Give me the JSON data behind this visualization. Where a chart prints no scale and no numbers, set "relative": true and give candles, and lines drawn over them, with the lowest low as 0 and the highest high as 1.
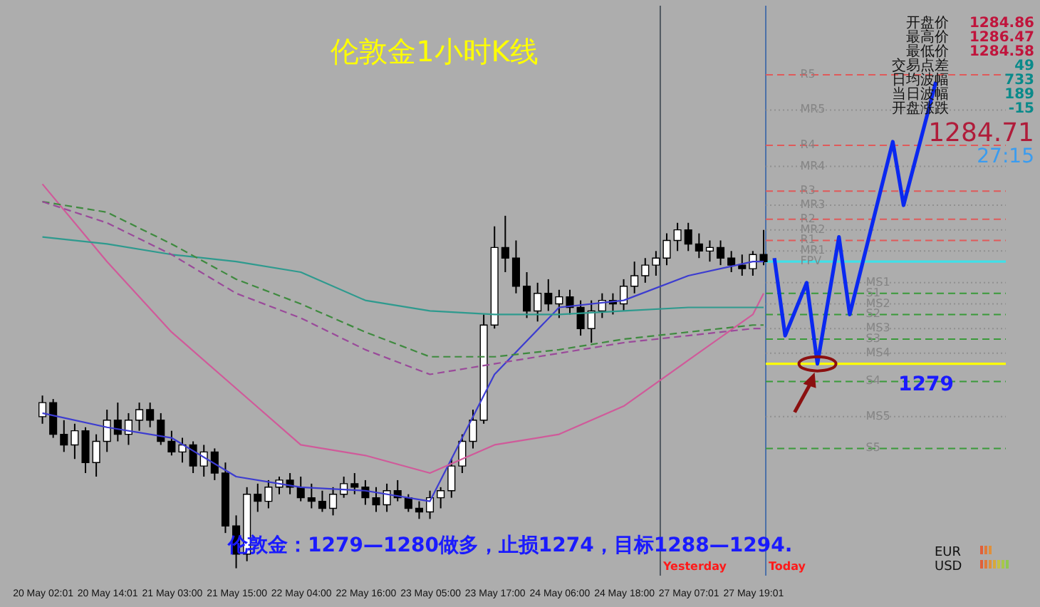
{
  "chart_data": {
    "type": "candlestick",
    "title": "伦敦金1小时K线",
    "categories": [
      "20 May 02:01",
      null,
      null,
      null,
      null,
      null,
      "20 May 14:01",
      null,
      null,
      null,
      null,
      null,
      "21 May 03:00",
      null,
      null,
      null,
      null,
      null,
      "21 May 15:00",
      null,
      null,
      null,
      null,
      null,
      "22 May 04:00",
      null,
      null,
      null,
      null,
      null,
      "22 May 16:00",
      null,
      null,
      null,
      null,
      null,
      "23 May 05:00",
      null,
      null,
      null,
      null,
      null,
      "23 May 17:00",
      null,
      null,
      null,
      null,
      null,
      "24 May 06:00",
      null,
      null,
      null,
      null,
      null,
      "24 May 18:00",
      null,
      null,
      null,
      null,
      null,
      "27 May 07:01",
      null,
      null,
      null,
      null,
      null,
      "27 May 19:01",
      null,
      null,
      null,
      null,
      null,
      null,
      null,
      null,
      null,
      null,
      null,
      null,
      null,
      null,
      null,
      null,
      null,
      null,
      null,
      null,
      null,
      null,
      null
    ],
    "relative": true,
    "ohlc": [
      [
        0.43,
        0.49,
        0.41,
        0.47
      ],
      [
        0.47,
        0.48,
        0.37,
        0.38
      ],
      [
        0.38,
        0.42,
        0.33,
        0.35
      ],
      [
        0.35,
        0.41,
        0.31,
        0.39
      ],
      [
        0.39,
        0.4,
        0.27,
        0.3
      ],
      [
        0.3,
        0.38,
        0.26,
        0.36
      ],
      [
        0.36,
        0.45,
        0.33,
        0.42
      ],
      [
        0.42,
        0.47,
        0.36,
        0.38
      ],
      [
        0.38,
        0.44,
        0.35,
        0.42
      ],
      [
        0.42,
        0.47,
        0.39,
        0.45
      ],
      [
        0.45,
        0.47,
        0.4,
        0.42
      ],
      [
        0.42,
        0.44,
        0.35,
        0.36
      ],
      [
        0.36,
        0.39,
        0.32,
        0.33
      ],
      [
        0.33,
        0.37,
        0.3,
        0.35
      ],
      [
        0.35,
        0.36,
        0.27,
        0.29
      ],
      [
        0.29,
        0.35,
        0.26,
        0.33
      ],
      [
        0.33,
        0.34,
        0.25,
        0.27
      ],
      [
        0.27,
        0.3,
        0.1,
        0.12
      ],
      [
        0.12,
        0.15,
        0,
        0.04
      ],
      [
        0.04,
        0.23,
        0.02,
        0.21
      ],
      [
        0.21,
        0.24,
        0.16,
        0.19
      ],
      [
        0.19,
        0.25,
        0.17,
        0.23
      ],
      [
        0.23,
        0.26,
        0.21,
        0.25
      ],
      [
        0.25,
        0.27,
        0.21,
        0.23
      ],
      [
        0.23,
        0.26,
        0.19,
        0.2
      ],
      [
        0.2,
        0.24,
        0.17,
        0.19
      ],
      [
        0.19,
        0.22,
        0.16,
        0.17
      ],
      [
        0.17,
        0.23,
        0.15,
        0.21
      ],
      [
        0.21,
        0.26,
        0.2,
        0.24
      ],
      [
        0.24,
        0.27,
        0.21,
        0.23
      ],
      [
        0.23,
        0.25,
        0.18,
        0.2
      ],
      [
        0.2,
        0.23,
        0.16,
        0.18
      ],
      [
        0.18,
        0.24,
        0.16,
        0.22
      ],
      [
        0.22,
        0.25,
        0.19,
        0.2
      ],
      [
        0.2,
        0.21,
        0.16,
        0.17
      ],
      [
        0.17,
        0.19,
        0.14,
        0.16
      ],
      [
        0.16,
        0.22,
        0.14,
        0.2
      ],
      [
        0.2,
        0.23,
        0.17,
        0.22
      ],
      [
        0.22,
        0.31,
        0.2,
        0.29
      ],
      [
        0.29,
        0.38,
        0.27,
        0.36
      ],
      [
        0.36,
        0.45,
        0.34,
        0.42
      ],
      [
        0.42,
        0.72,
        0.41,
        0.69
      ],
      [
        0.69,
        0.97,
        0.68,
        0.91
      ],
      [
        0.91,
        1,
        0.84,
        0.88
      ],
      [
        0.88,
        0.93,
        0.78,
        0.8
      ],
      [
        0.8,
        0.84,
        0.71,
        0.73
      ],
      [
        0.73,
        0.81,
        0.7,
        0.78
      ],
      [
        0.78,
        0.82,
        0.73,
        0.75
      ],
      [
        0.75,
        0.79,
        0.71,
        0.77
      ],
      [
        0.77,
        0.79,
        0.72,
        0.74
      ],
      [
        0.74,
        0.76,
        0.66,
        0.68
      ],
      [
        0.68,
        0.76,
        0.64,
        0.73
      ],
      [
        0.73,
        0.78,
        0.71,
        0.76
      ],
      [
        0.76,
        0.78,
        0.72,
        0.75
      ],
      [
        0.75,
        0.82,
        0.73,
        0.8
      ],
      [
        0.8,
        0.87,
        0.78,
        0.83
      ],
      [
        0.83,
        0.88,
        0.81,
        0.86
      ],
      [
        0.86,
        0.9,
        0.83,
        0.88
      ],
      [
        0.88,
        0.95,
        0.86,
        0.93
      ],
      [
        0.93,
        0.98,
        0.9,
        0.96
      ],
      [
        0.96,
        0.98,
        0.9,
        0.92
      ],
      [
        0.92,
        0.95,
        0.88,
        0.9
      ],
      [
        0.9,
        0.93,
        0.87,
        0.91
      ],
      [
        0.91,
        0.93,
        0.86,
        0.88
      ],
      [
        0.88,
        0.9,
        0.84,
        0.86
      ],
      [
        0.86,
        0.89,
        0.83,
        0.85
      ],
      [
        0.85,
        0.9,
        0.83,
        0.89
      ],
      [
        0.89,
        0.96,
        0.86,
        0.87
      ],
      null,
      null,
      null,
      null,
      null,
      null,
      null,
      null,
      null,
      null,
      null,
      null,
      null,
      null,
      null,
      null,
      null,
      null,
      null,
      null,
      null,
      null
    ],
    "tick_labels": "x",
    "series": [
      {
        "type": "line",
        "color": "#3c3cd0",
        "values": [
          0.44,
          null,
          null,
          null,
          null,
          null,
          0.4,
          null,
          null,
          null,
          null,
          null,
          0.37,
          null,
          null,
          null,
          null,
          null,
          0.26,
          null,
          null,
          null,
          null,
          null,
          0.23,
          null,
          null,
          null,
          null,
          null,
          0.22,
          null,
          null,
          null,
          null,
          null,
          0.19,
          null,
          null,
          null,
          null,
          null,
          0.55,
          null,
          null,
          null,
          null,
          null,
          0.74,
          null,
          null,
          null,
          null,
          null,
          0.76,
          null,
          null,
          null,
          null,
          null,
          0.83,
          null,
          null,
          null,
          null,
          null,
          0.87,
          0.87,
          null,
          null,
          null,
          null,
          null,
          null,
          null,
          null,
          null,
          null,
          null,
          null,
          null,
          null,
          null,
          null,
          null,
          null,
          null,
          null,
          null,
          null
        ]
      },
      {
        "type": "line",
        "color": "#d05a9a",
        "values": [
          1.09,
          null,
          null,
          null,
          null,
          null,
          0.87,
          null,
          null,
          null,
          null,
          null,
          0.67,
          null,
          null,
          null,
          null,
          null,
          0.51,
          null,
          null,
          null,
          null,
          null,
          0.35,
          null,
          null,
          null,
          null,
          null,
          0.32,
          null,
          null,
          null,
          null,
          null,
          0.27,
          null,
          null,
          null,
          null,
          null,
          0.35,
          null,
          null,
          null,
          null,
          null,
          0.38,
          null,
          null,
          null,
          null,
          null,
          0.46,
          null,
          null,
          null,
          null,
          null,
          0.59,
          null,
          null,
          null,
          null,
          null,
          0.72,
          0.78,
          null,
          null,
          null,
          null,
          null,
          null,
          null,
          null,
          null,
          null,
          null,
          null,
          null,
          null,
          null,
          null,
          null,
          null,
          null,
          null,
          null,
          null
        ]
      },
      {
        "type": "line",
        "color": "#2e9a8e",
        "values": [
          0.94,
          null,
          null,
          null,
          null,
          null,
          0.92,
          null,
          null,
          null,
          null,
          null,
          0.89,
          null,
          null,
          null,
          null,
          null,
          0.87,
          null,
          null,
          null,
          null,
          null,
          0.84,
          null,
          null,
          null,
          null,
          null,
          0.76,
          null,
          null,
          null,
          null,
          null,
          0.73,
          null,
          null,
          null,
          null,
          null,
          0.72,
          null,
          null,
          null,
          null,
          null,
          0.72,
          null,
          null,
          null,
          null,
          null,
          0.73,
          null,
          null,
          null,
          null,
          null,
          0.74,
          null,
          null,
          null,
          null,
          null,
          0.74,
          0.74,
          null,
          null,
          null,
          null,
          null,
          null,
          null,
          null,
          null,
          null,
          null,
          null,
          null,
          null,
          null,
          null,
          null,
          null,
          null,
          null,
          null,
          null
        ]
      },
      {
        "type": "line",
        "color": "#3f8a3f",
        "line_style": "dashed",
        "values": [
          1.04,
          null,
          null,
          null,
          null,
          null,
          1.01,
          null,
          null,
          null,
          null,
          null,
          0.92,
          null,
          null,
          null,
          null,
          null,
          0.82,
          null,
          null,
          null,
          null,
          null,
          0.75,
          null,
          null,
          null,
          null,
          null,
          0.67,
          null,
          null,
          null,
          null,
          null,
          0.6,
          null,
          null,
          null,
          null,
          null,
          0.6,
          null,
          null,
          null,
          null,
          null,
          0.62,
          null,
          null,
          null,
          null,
          null,
          0.65,
          null,
          null,
          null,
          null,
          null,
          0.67,
          null,
          null,
          null,
          null,
          null,
          0.69,
          0.69,
          null,
          null,
          null,
          null,
          null,
          null,
          null,
          null,
          null,
          null,
          null,
          null,
          null,
          null,
          null,
          null,
          null,
          null,
          null,
          null,
          null,
          null
        ]
      },
      {
        "type": "line",
        "color": "#9a4a9a",
        "line_style": "dashed",
        "values": [
          1.04,
          null,
          null,
          null,
          null,
          null,
          0.98,
          null,
          null,
          null,
          null,
          null,
          0.89,
          null,
          null,
          null,
          null,
          null,
          0.78,
          null,
          null,
          null,
          null,
          null,
          0.71,
          null,
          null,
          null,
          null,
          null,
          0.62,
          null,
          null,
          null,
          null,
          null,
          0.55,
          null,
          null,
          null,
          null,
          null,
          0.58,
          null,
          null,
          null,
          null,
          null,
          0.61,
          null,
          null,
          null,
          null,
          null,
          0.64,
          null,
          null,
          null,
          null,
          null,
          0.66,
          null,
          null,
          null,
          null,
          null,
          0.68,
          0.68,
          null,
          null,
          null,
          null,
          null,
          null,
          null,
          null,
          null,
          null,
          null,
          null,
          null,
          null,
          null,
          null,
          null,
          null,
          null,
          null,
          null,
          null
        ]
      },
      {
        "type": "line",
        "color": "#0a28f0",
        "values": [
          null,
          null,
          null,
          null,
          null,
          null,
          null,
          null,
          null,
          null,
          null,
          null,
          null,
          null,
          null,
          null,
          null,
          null,
          null,
          null,
          null,
          null,
          null,
          null,
          null,
          null,
          null,
          null,
          null,
          null,
          null,
          null,
          null,
          null,
          null,
          null,
          null,
          null,
          null,
          null,
          null,
          null,
          null,
          null,
          null,
          null,
          null,
          null,
          null,
          null,
          null,
          null,
          null,
          null,
          null,
          null,
          null,
          null,
          null,
          null,
          null,
          null,
          null,
          null,
          null,
          null,
          null,
          null,
          0.88,
          0.66,
          null,
          0.81,
          0.58,
          null,
          0.94,
          0.72,
          null,
          null,
          null,
          1.21,
          1.03,
          null,
          null,
          1.38,
          null,
          null,
          null,
          null,
          null,
          null
        ]
      }
    ],
    "ref_lines": [
      {
        "axis": "y",
        "value": 1.4,
        "label": "R5",
        "color": "#e05a5a",
        "line_style": "dashed"
      },
      {
        "axis": "y",
        "value": 1.3,
        "label": "MR5",
        "color": "#909090",
        "line_style": "dotted"
      },
      {
        "axis": "y",
        "value": 1.2,
        "label": "R4",
        "color": "#e05a5a",
        "line_style": "dashed"
      },
      {
        "axis": "y",
        "value": 1.14,
        "label": "MR4",
        "color": "#909090",
        "line_style": "dotted"
      },
      {
        "axis": "y",
        "value": 1.07,
        "label": "R3",
        "color": "#e05a5a",
        "line_style": "dashed"
      },
      {
        "axis": "y",
        "value": 1.03,
        "label": "MR3",
        "color": "#909090",
        "line_style": "dotted"
      },
      {
        "axis": "y",
        "value": 0.99,
        "label": "R2",
        "color": "#e05a5a",
        "line_style": "dashed"
      },
      {
        "axis": "y",
        "value": 0.96,
        "label": "MR2",
        "color": "#909090",
        "line_style": "dotted"
      },
      {
        "axis": "y",
        "value": 0.93,
        "label": "R1",
        "color": "#e05a5a",
        "line_style": "dashed"
      },
      {
        "axis": "y",
        "value": 0.9,
        "label": "MR1",
        "color": "#909090",
        "line_style": "dotted"
      },
      {
        "axis": "y",
        "value": 0.87,
        "label": "FPV",
        "color": "#40e0e8",
        "line_style": "solid"
      },
      {
        "axis": "y",
        "value": 0.81,
        "label": "MS1",
        "color": "#909090",
        "line_style": "dotted"
      },
      {
        "axis": "y",
        "value": 0.78,
        "label": "S1",
        "color": "#3a9a3a",
        "line_style": "dashed"
      },
      {
        "axis": "y",
        "value": 0.75,
        "label": "MS2",
        "color": "#909090",
        "line_style": "dotted"
      },
      {
        "axis": "y",
        "value": 0.72,
        "label": "S2",
        "color": "#3a9a3a",
        "line_style": "dashed"
      },
      {
        "axis": "y",
        "value": 0.68,
        "label": "MS3",
        "color": "#909090",
        "line_style": "dotted"
      },
      {
        "axis": "y",
        "value": 0.65,
        "label": "S3",
        "color": "#3a9a3a",
        "line_style": "dashed"
      },
      {
        "axis": "y",
        "value": 0.58,
        "color": "#ffff00",
        "line_style": "solid"
      },
      {
        "axis": "y",
        "value": 0.61,
        "label": "MS4",
        "color": "#909090",
        "line_style": "dotted"
      },
      {
        "axis": "y",
        "value": 0.53,
        "label": "S4",
        "color": "#3a9a3a",
        "line_style": "dashed"
      },
      {
        "axis": "y",
        "value": 0.43,
        "label": "MS5",
        "color": "#909090",
        "line_style": "dotted"
      },
      {
        "axis": "y",
        "value": 0.34,
        "label": "S5",
        "color": "#3a9a3a",
        "line_style": "dashed"
      }
    ],
    "annotations": [
      "伦敦金：1279—1280做多，止损1274，目标1288—1294.",
      "开盘价",
      "1284.86",
      "最高价",
      "1286.47",
      "最低价",
      "1284.58",
      "交易点差",
      "49",
      "日均波幅",
      "733",
      "当日波幅",
      "189",
      "开盘涨跌",
      "-15",
      "1284.71",
      "27:15",
      "EUR",
      "USD",
      "1279",
      "Yesterday",
      "Today"
    ]
  }
}
